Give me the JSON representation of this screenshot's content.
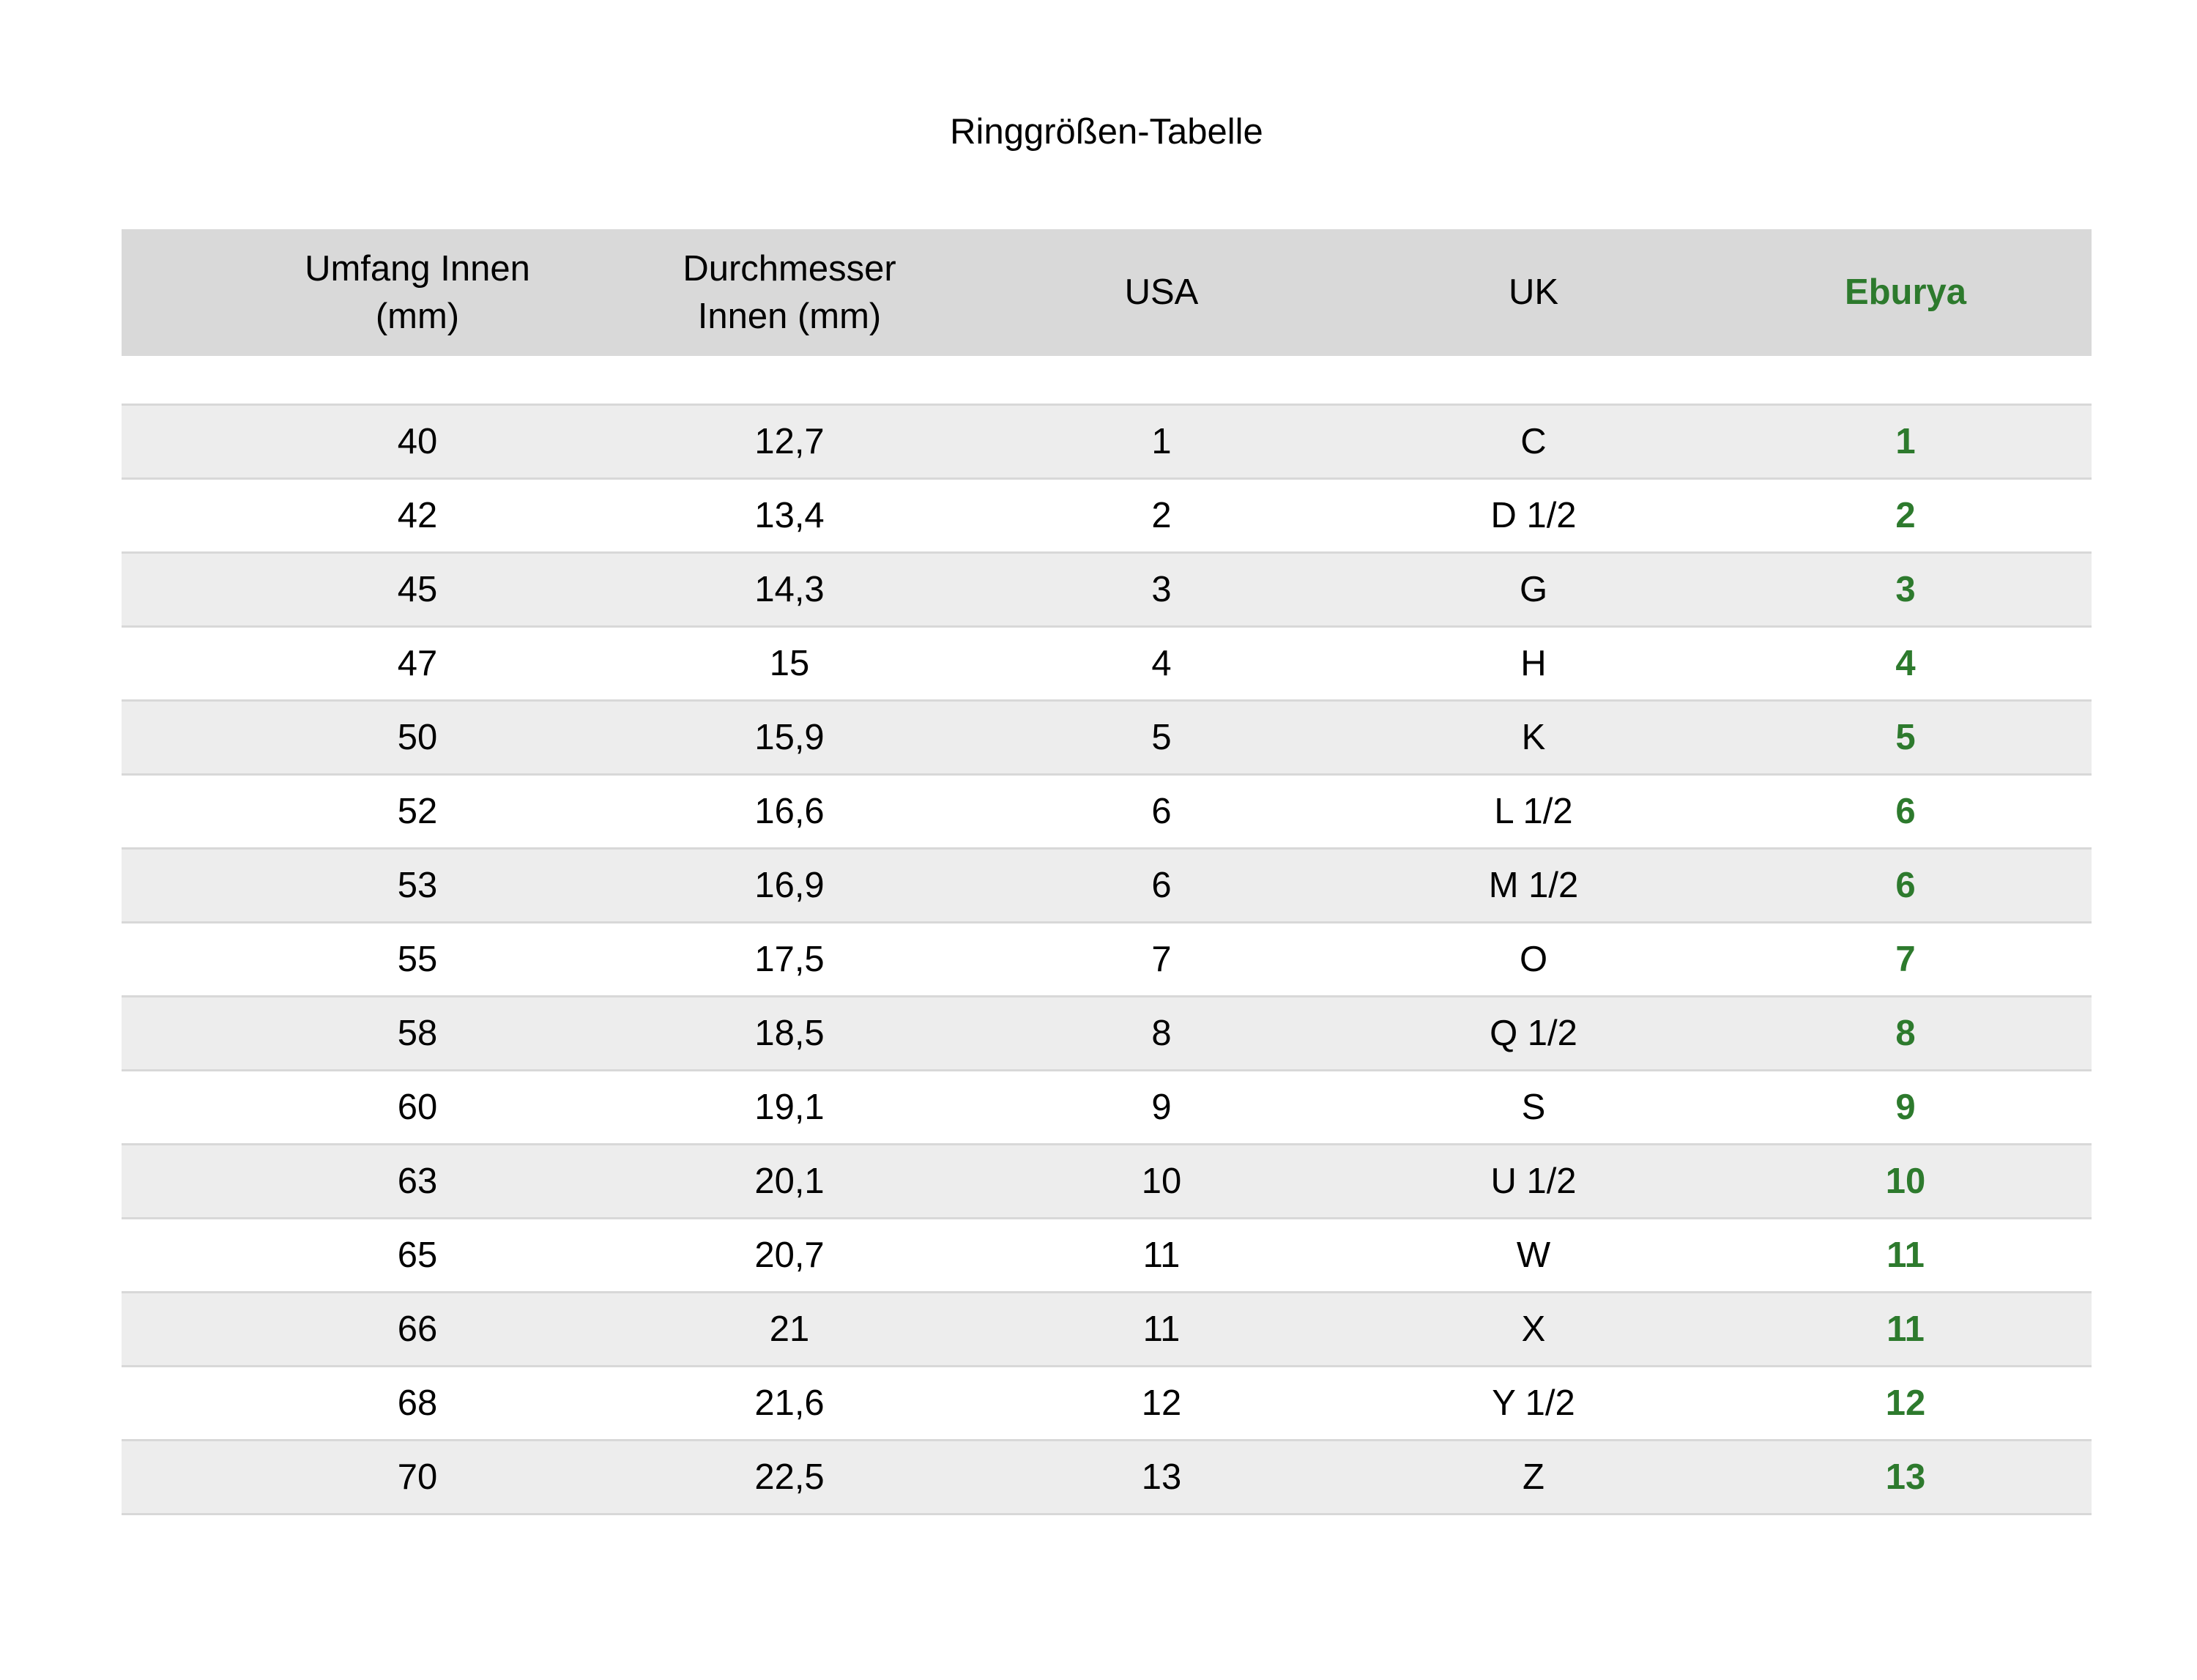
{
  "title": "Ringgrößen-Tabelle",
  "colors": {
    "accent_green": "#2d7a2d",
    "header_bg": "#d9d9d9",
    "row_alt_bg": "#ededed",
    "row_bg": "#ffffff",
    "divider": "#d8d8d8",
    "text": "#000000"
  },
  "table": {
    "headers": [
      "Umfang Innen\n(mm)",
      "Durchmesser\nInnen (mm)",
      "USA",
      "UK",
      "Eburya"
    ],
    "rows": [
      [
        "40",
        "12,7",
        "1",
        "C",
        "1"
      ],
      [
        "42",
        "13,4",
        "2",
        "D 1/2",
        "2"
      ],
      [
        "45",
        "14,3",
        "3",
        "G",
        "3"
      ],
      [
        "47",
        "15",
        "4",
        "H",
        "4"
      ],
      [
        "50",
        "15,9",
        "5",
        "K",
        "5"
      ],
      [
        "52",
        "16,6",
        "6",
        "L 1/2",
        "6"
      ],
      [
        "53",
        "16,9",
        "6",
        "M 1/2",
        "6"
      ],
      [
        "55",
        "17,5",
        "7",
        "O",
        "7"
      ],
      [
        "58",
        "18,5",
        "8",
        "Q 1/2",
        "8"
      ],
      [
        "60",
        "19,1",
        "9",
        "S",
        "9"
      ],
      [
        "63",
        "20,1",
        "10",
        "U 1/2",
        "10"
      ],
      [
        "65",
        "20,7",
        "11",
        "W",
        "11"
      ],
      [
        "66",
        "21",
        "11",
        "X",
        "11"
      ],
      [
        "68",
        "21,6",
        "12",
        "Y 1/2",
        "12"
      ],
      [
        "70",
        "22,5",
        "13",
        "Z",
        "13"
      ]
    ]
  }
}
